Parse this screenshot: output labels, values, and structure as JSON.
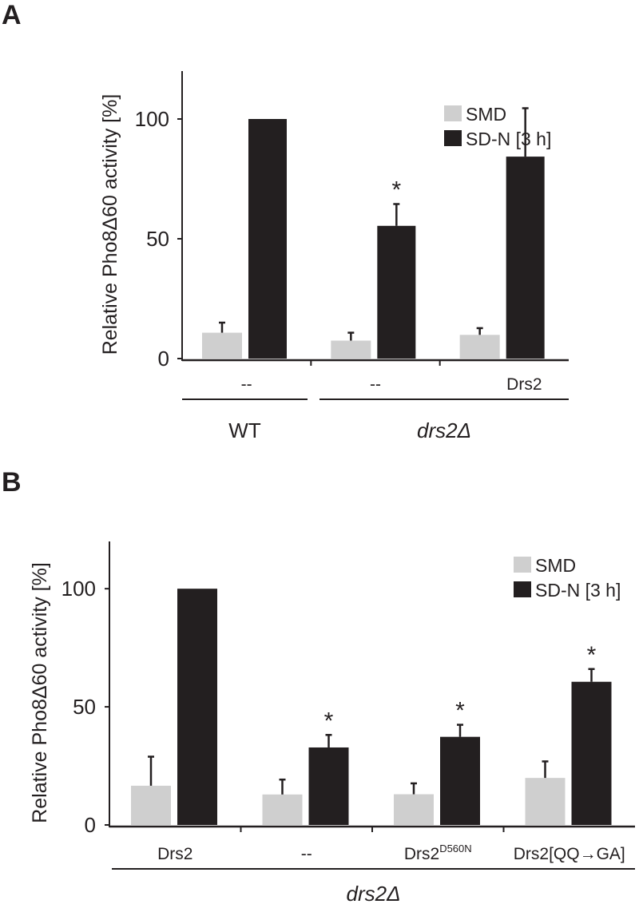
{
  "colors": {
    "SMD": "#cfcfcf",
    "SD-N [3 h]": "#231f20"
  },
  "chart_data": [
    {
      "panel": "A",
      "type": "bar",
      "ylabel": "Relative Pho8Δ60 activity [%]",
      "ylim": [
        0,
        120
      ],
      "yticks": [
        0,
        50,
        100
      ],
      "legend": [
        "SMD",
        "SD-N [3 h]"
      ],
      "legend_position": "top-right",
      "categories": [
        {
          "label": "--",
          "sup": ""
        },
        {
          "label": "--",
          "sup": ""
        },
        {
          "label": "Drs2",
          "sup": ""
        }
      ],
      "groups": [
        {
          "label": "WT",
          "italic": false,
          "from": 0,
          "to": 0
        },
        {
          "label": "drs2Δ",
          "italic": true,
          "from": 1,
          "to": 2
        }
      ],
      "series": [
        {
          "name": "SMD",
          "values": [
            10.8,
            7.5,
            9.9
          ],
          "error": [
            4.2,
            3.3,
            2.8
          ],
          "significant": [
            false,
            false,
            false
          ]
        },
        {
          "name": "SD-N [3 h]",
          "values": [
            100,
            55.4,
            84.3
          ],
          "error": [
            0,
            9.1,
            20.2
          ],
          "significant": [
            false,
            true,
            false
          ]
        }
      ],
      "significance_mark": "*"
    },
    {
      "panel": "B",
      "type": "bar",
      "ylabel": "Relative Pho8Δ60 activity [%]",
      "ylim": [
        0,
        120
      ],
      "yticks": [
        0,
        50,
        100
      ],
      "legend": [
        "SMD",
        "SD-N [3 h]"
      ],
      "legend_position": "top-right",
      "categories": [
        {
          "label": "Drs2",
          "sup": ""
        },
        {
          "label": "--",
          "sup": ""
        },
        {
          "label": "Drs2",
          "sup": "D560N"
        },
        {
          "label": "Drs2[QQ→GA]",
          "sup": ""
        }
      ],
      "groups": [
        {
          "label": "drs2Δ",
          "italic": true,
          "from": 0,
          "to": 3
        }
      ],
      "series": [
        {
          "name": "SMD",
          "values": [
            16.6,
            12.9,
            13.0,
            19.9
          ],
          "error": [
            12.3,
            6.3,
            4.6,
            7.0
          ],
          "significant": [
            false,
            false,
            false,
            false
          ]
        },
        {
          "name": "SD-N [3 h]",
          "values": [
            100,
            32.8,
            37.3,
            60.6
          ],
          "error": [
            0,
            5.3,
            5.1,
            5.4
          ],
          "significant": [
            false,
            true,
            true,
            true
          ]
        }
      ],
      "significance_mark": "*"
    }
  ]
}
